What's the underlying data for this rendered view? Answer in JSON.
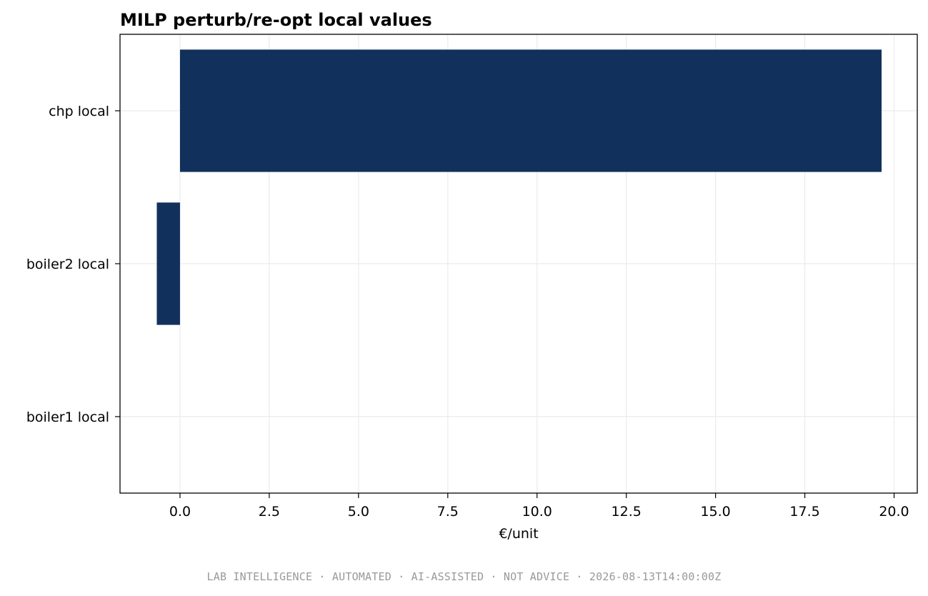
{
  "chart_data": {
    "type": "bar",
    "orientation": "horizontal",
    "title": "MILP perturb/re-opt local values",
    "xlabel": "€/unit",
    "ylabel": "",
    "categories": [
      "boiler1 local",
      "boiler2 local",
      "chp local"
    ],
    "values": [
      0.0,
      -0.65,
      19.65
    ],
    "xlim": [
      -1.68,
      20.65
    ],
    "xticks": [
      0.0,
      2.5,
      5.0,
      7.5,
      10.0,
      12.5,
      15.0,
      17.5,
      20.0
    ],
    "xtick_labels": [
      "0.0",
      "2.5",
      "5.0",
      "7.5",
      "10.0",
      "12.5",
      "15.0",
      "17.5",
      "20.0"
    ],
    "grid": true,
    "bar_color": "#12305c",
    "grid_color": "#ebebeb"
  },
  "footer": {
    "text": "LAB INTELLIGENCE · AUTOMATED · AI-ASSISTED · NOT ADVICE · 2026-08-13T14:00:00Z"
  }
}
